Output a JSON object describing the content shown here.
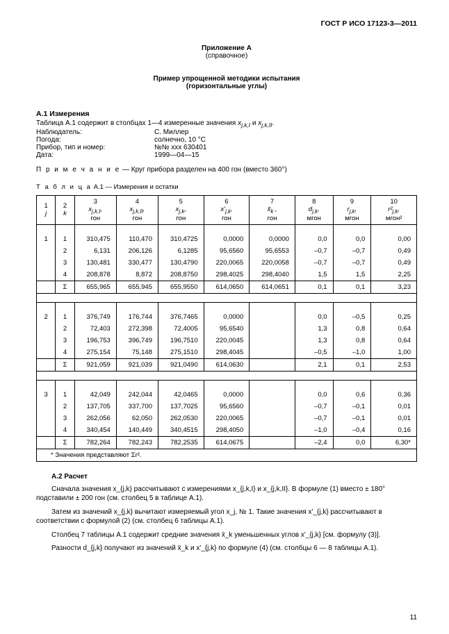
{
  "header_right": "ГОСТ Р ИСО 17123-3—2011",
  "annex": {
    "line1": "Приложение А",
    "line2": "(справочное)"
  },
  "title": {
    "l1": "Пример упрощенной методики испытания",
    "l2": "(горизонтальные углы)"
  },
  "a1_head": "А.1 Измерения",
  "a1_line": "Таблица А.1 содержит в столбцах 1—4 измеренные значения x_{j,k,I} и x_{j,k,II}.",
  "meta": [
    {
      "k": "Наблюдатель:",
      "v": "С. Миллер"
    },
    {
      "k": "Погода:",
      "v": "солнечно, 10 °C"
    },
    {
      "k": "Прибор, тип и номер:",
      "v": "№№ xxx 630401"
    },
    {
      "k": "Дата:",
      "v": "1999—04—15"
    }
  ],
  "note_label": "П р и м е ч а н и е",
  "note_text": " — Круг прибора разделен на 400 гон (вместо 360°)",
  "table_caption_label": "Т а б л и ц а",
  "table_caption_rest": "  А.1 — Измерения и остатки",
  "th": {
    "c1a": "1",
    "c1b": "j",
    "c2a": "2",
    "c2b": "k",
    "c3a": "3",
    "c3b": "x_{j,k,I},",
    "c3c": "гон",
    "c4a": "4",
    "c4b": "x_{j,k,II},",
    "c4c": "гон",
    "c5a": "5",
    "c5b": "x_{j,k},",
    "c5c": "гон",
    "c6a": "6",
    "c6b": "x'_{j,k},",
    "c6c": "гон",
    "c7a": "7",
    "c7b": "x̄_k ,",
    "c7c": "гон",
    "c8a": "8",
    "c8b": "d_{j,k},",
    "c8c": "мгон",
    "c9a": "9",
    "c9b": "r_{j,k},",
    "c9c": "мгон",
    "c10a": "10",
    "c10b": "r²_{j,k},",
    "c10c": "мгон²"
  },
  "groups": [
    {
      "j": "1",
      "rows": [
        {
          "k": "1",
          "c3": "310,475",
          "c4": "110,470",
          "c5": "310,4725",
          "c6": "0,0000",
          "c7": "0,0000",
          "c8": "0,0",
          "c9": "0,0",
          "c10": "0,00"
        },
        {
          "k": "2",
          "c3": "6,131",
          "c4": "206,126",
          "c5": "6,1285",
          "c6": "95,6560",
          "c7": "95,6553",
          "c8": "–0,7",
          "c9": "–0,7",
          "c10": "0,49"
        },
        {
          "k": "3",
          "c3": "130,481",
          "c4": "330,477",
          "c5": "130,4790",
          "c6": "220,0065",
          "c7": "220,0058",
          "c8": "–0,7",
          "c9": "–0,7",
          "c10": "0,49"
        },
        {
          "k": "4",
          "c3": "208,878",
          "c4": "8,872",
          "c5": "208,8750",
          "c6": "298,4025",
          "c7": "298,4040",
          "c8": "1,5",
          "c9": "1,5",
          "c10": "2,25"
        }
      ],
      "sum": {
        "c2": "Σ",
        "c3": "655,965",
        "c4": "655,945",
        "c5": "655,9550",
        "c6": "614,0650",
        "c7": "614,0651",
        "c8": "0,1",
        "c9": "0,1",
        "c10": "3,23"
      }
    },
    {
      "j": "2",
      "rows": [
        {
          "k": "1",
          "c3": "376,749",
          "c4": "176,744",
          "c5": "376,7465",
          "c6": "0,0000",
          "c7": "",
          "c8": "0,0",
          "c9": "–0,5",
          "c10": "0,25"
        },
        {
          "k": "2",
          "c3": "72,403",
          "c4": "272,398",
          "c5": "72,4005",
          "c6": "95,6540",
          "c7": "",
          "c8": "1,3",
          "c9": "0,8",
          "c10": "0,64"
        },
        {
          "k": "3",
          "c3": "196,753",
          "c4": "396,749",
          "c5": "196,7510",
          "c6": "220,0045",
          "c7": "",
          "c8": "1,3",
          "c9": "0,8",
          "c10": "0,64"
        },
        {
          "k": "4",
          "c3": "275,154",
          "c4": "75,148",
          "c5": "275,1510",
          "c6": "298,4045",
          "c7": "",
          "c8": "–0,5",
          "c9": "–1,0",
          "c10": "1,00"
        }
      ],
      "sum": {
        "c2": "Σ",
        "c3": "921,059",
        "c4": "921,039",
        "c5": "921,0490",
        "c6": "614,0630",
        "c7": "",
        "c8": "2,1",
        "c9": "0,1",
        "c10": "2,53"
      }
    },
    {
      "j": "3",
      "rows": [
        {
          "k": "1",
          "c3": "42,049",
          "c4": "242,044",
          "c5": "42,0465",
          "c6": "0,0000",
          "c7": "",
          "c8": "0,0",
          "c9": "0,6",
          "c10": "0,36"
        },
        {
          "k": "2",
          "c3": "137,705",
          "c4": "337,700",
          "c5": "137,7025",
          "c6": "95,6560",
          "c7": "",
          "c8": "–0,7",
          "c9": "–0,1",
          "c10": "0,01"
        },
        {
          "k": "3",
          "c3": "262,056",
          "c4": "62,050",
          "c5": "262,0530",
          "c6": "220,0065",
          "c7": "",
          "c8": "–0,7",
          "c9": "–0,1",
          "c10": "0,01"
        },
        {
          "k": "4",
          "c3": "340,454",
          "c4": "140,449",
          "c5": "340,4515",
          "c6": "298,4050",
          "c7": "",
          "c8": "–1,0",
          "c9": "–0,4",
          "c10": "0,16"
        }
      ],
      "sum": {
        "c2": "Σ",
        "c3": "782,264",
        "c4": "782,243",
        "c5": "782,2535",
        "c6": "614,0675",
        "c7": "",
        "c8": "–2,4",
        "c9": "0,0",
        "c10": "6,30*"
      }
    }
  ],
  "footnote": "*  Значения представляют  Σr².",
  "a2_head": "А.2 Расчет",
  "p1": "Сначала значения  x_{j,k}  рассчитывают с измерениями  x_{j,k,I}  и  x_{j,k,II}.  В формуле (1) вместо  ± 180°  подставили ± 200 гон  (см. столбец 5  в таблице А.1).",
  "p2": "Затем из значений  x_{j,k}  вычитают измеряемый угол x_j, № 1. Такие значения x'_{j,k}  рассчитывают в соответствии с формулой (2) (см. столбец 6 таблицы А.1).",
  "p3": "Столбец 7 таблицы А.1 содержит средние значения  x̄_k  уменьшенных углов x'_{j,k} [см. формулу (3)].",
  "p4": "Разности d_{j,k} получают из значений  x̄_k  и x'_{j,k} по формуле (4) (см. столбцы 6 — 8 таблицы А.1).",
  "page": "11"
}
